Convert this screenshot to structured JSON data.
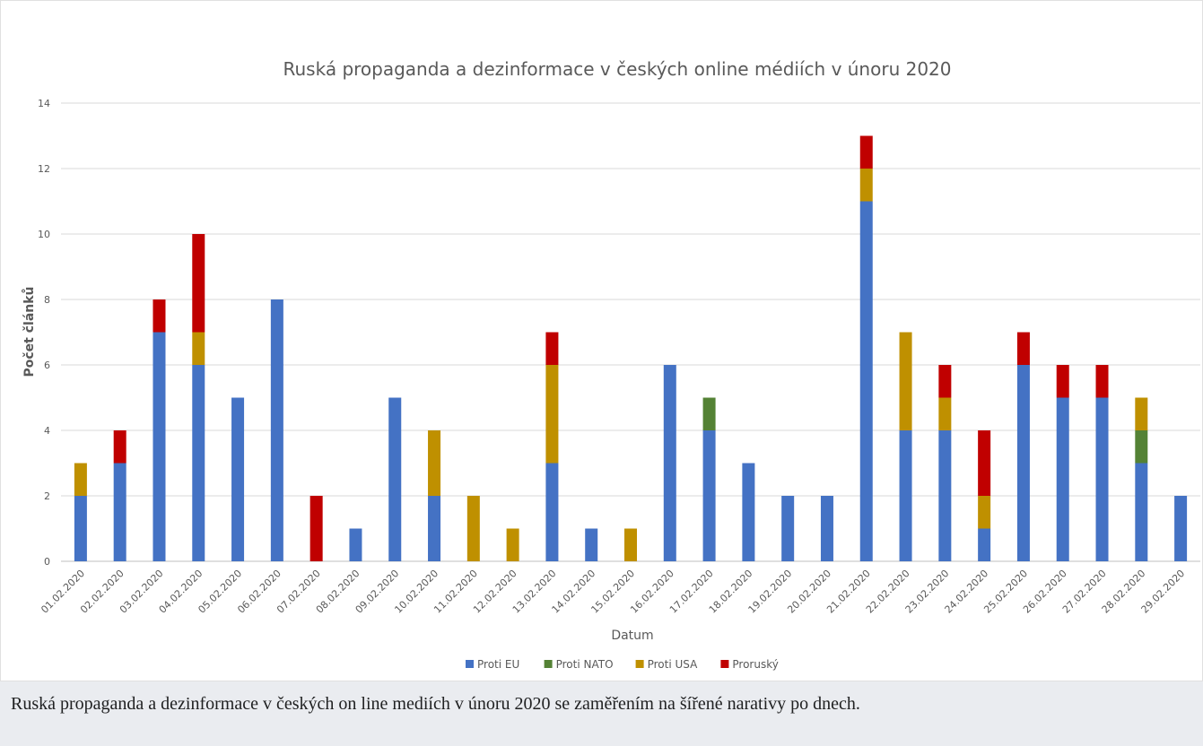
{
  "chart_data": {
    "type": "stacked_bar",
    "title": "Ruská propaganda a dezinformace v českých online médiích v únoru 2020",
    "x_label": "Datum",
    "y_label": "Počet článků",
    "categories": [
      "01.02.2020",
      "02.02.2020",
      "03.02.2020",
      "04.02.2020",
      "05.02.2020",
      "06.02.2020",
      "07.02.2020",
      "08.02.2020",
      "09.02.2020",
      "10.02.2020",
      "11.02.2020",
      "12.02.2020",
      "13.02.2020",
      "14.02.2020",
      "15.02.2020",
      "16.02.2020",
      "17.02.2020",
      "18.02.2020",
      "19.02.2020",
      "20.02.2020",
      "21.02.2020",
      "22.02.2020",
      "23.02.2020",
      "24.02.2020",
      "25.02.2020",
      "26.02.2020",
      "27.02.2020",
      "28.02.2020",
      "29.02.2020"
    ],
    "series": [
      {
        "name": "Proti EU",
        "color": "#4472c4",
        "values": [
          2,
          3,
          7,
          6,
          5,
          8,
          0,
          1,
          5,
          2,
          0,
          0,
          3,
          1,
          0,
          6,
          4,
          3,
          2,
          2,
          11,
          4,
          4,
          1,
          6,
          5,
          5,
          3,
          2
        ]
      },
      {
        "name": "Proti NATO",
        "color": "#548235",
        "values": [
          0,
          0,
          0,
          0,
          0,
          0,
          0,
          0,
          0,
          0,
          0,
          0,
          0,
          0,
          0,
          0,
          1,
          0,
          0,
          0,
          0,
          0,
          0,
          0,
          0,
          0,
          0,
          1,
          0
        ]
      },
      {
        "name": "Proti USA",
        "color": "#bf9000",
        "values": [
          1,
          0,
          0,
          1,
          0,
          0,
          0,
          0,
          0,
          2,
          2,
          1,
          3,
          0,
          1,
          0,
          0,
          0,
          0,
          0,
          1,
          3,
          1,
          1,
          0,
          0,
          0,
          1,
          0
        ]
      },
      {
        "name": "Proruský",
        "color": "#c00000",
        "values": [
          0,
          1,
          1,
          3,
          0,
          0,
          2,
          0,
          0,
          0,
          0,
          0,
          1,
          0,
          0,
          0,
          0,
          0,
          0,
          0,
          1,
          0,
          1,
          2,
          1,
          1,
          1,
          0,
          0
        ]
      }
    ],
    "ylim": [
      0,
      14
    ],
    "yticks": [
      0,
      2,
      4,
      6,
      8,
      10,
      12,
      14
    ],
    "grid": true,
    "legend": "bottom"
  },
  "caption": "Ruská propaganda a dezinformace v českých on line mediích v únoru 2020 se zaměřením na šířené narativy po dnech."
}
